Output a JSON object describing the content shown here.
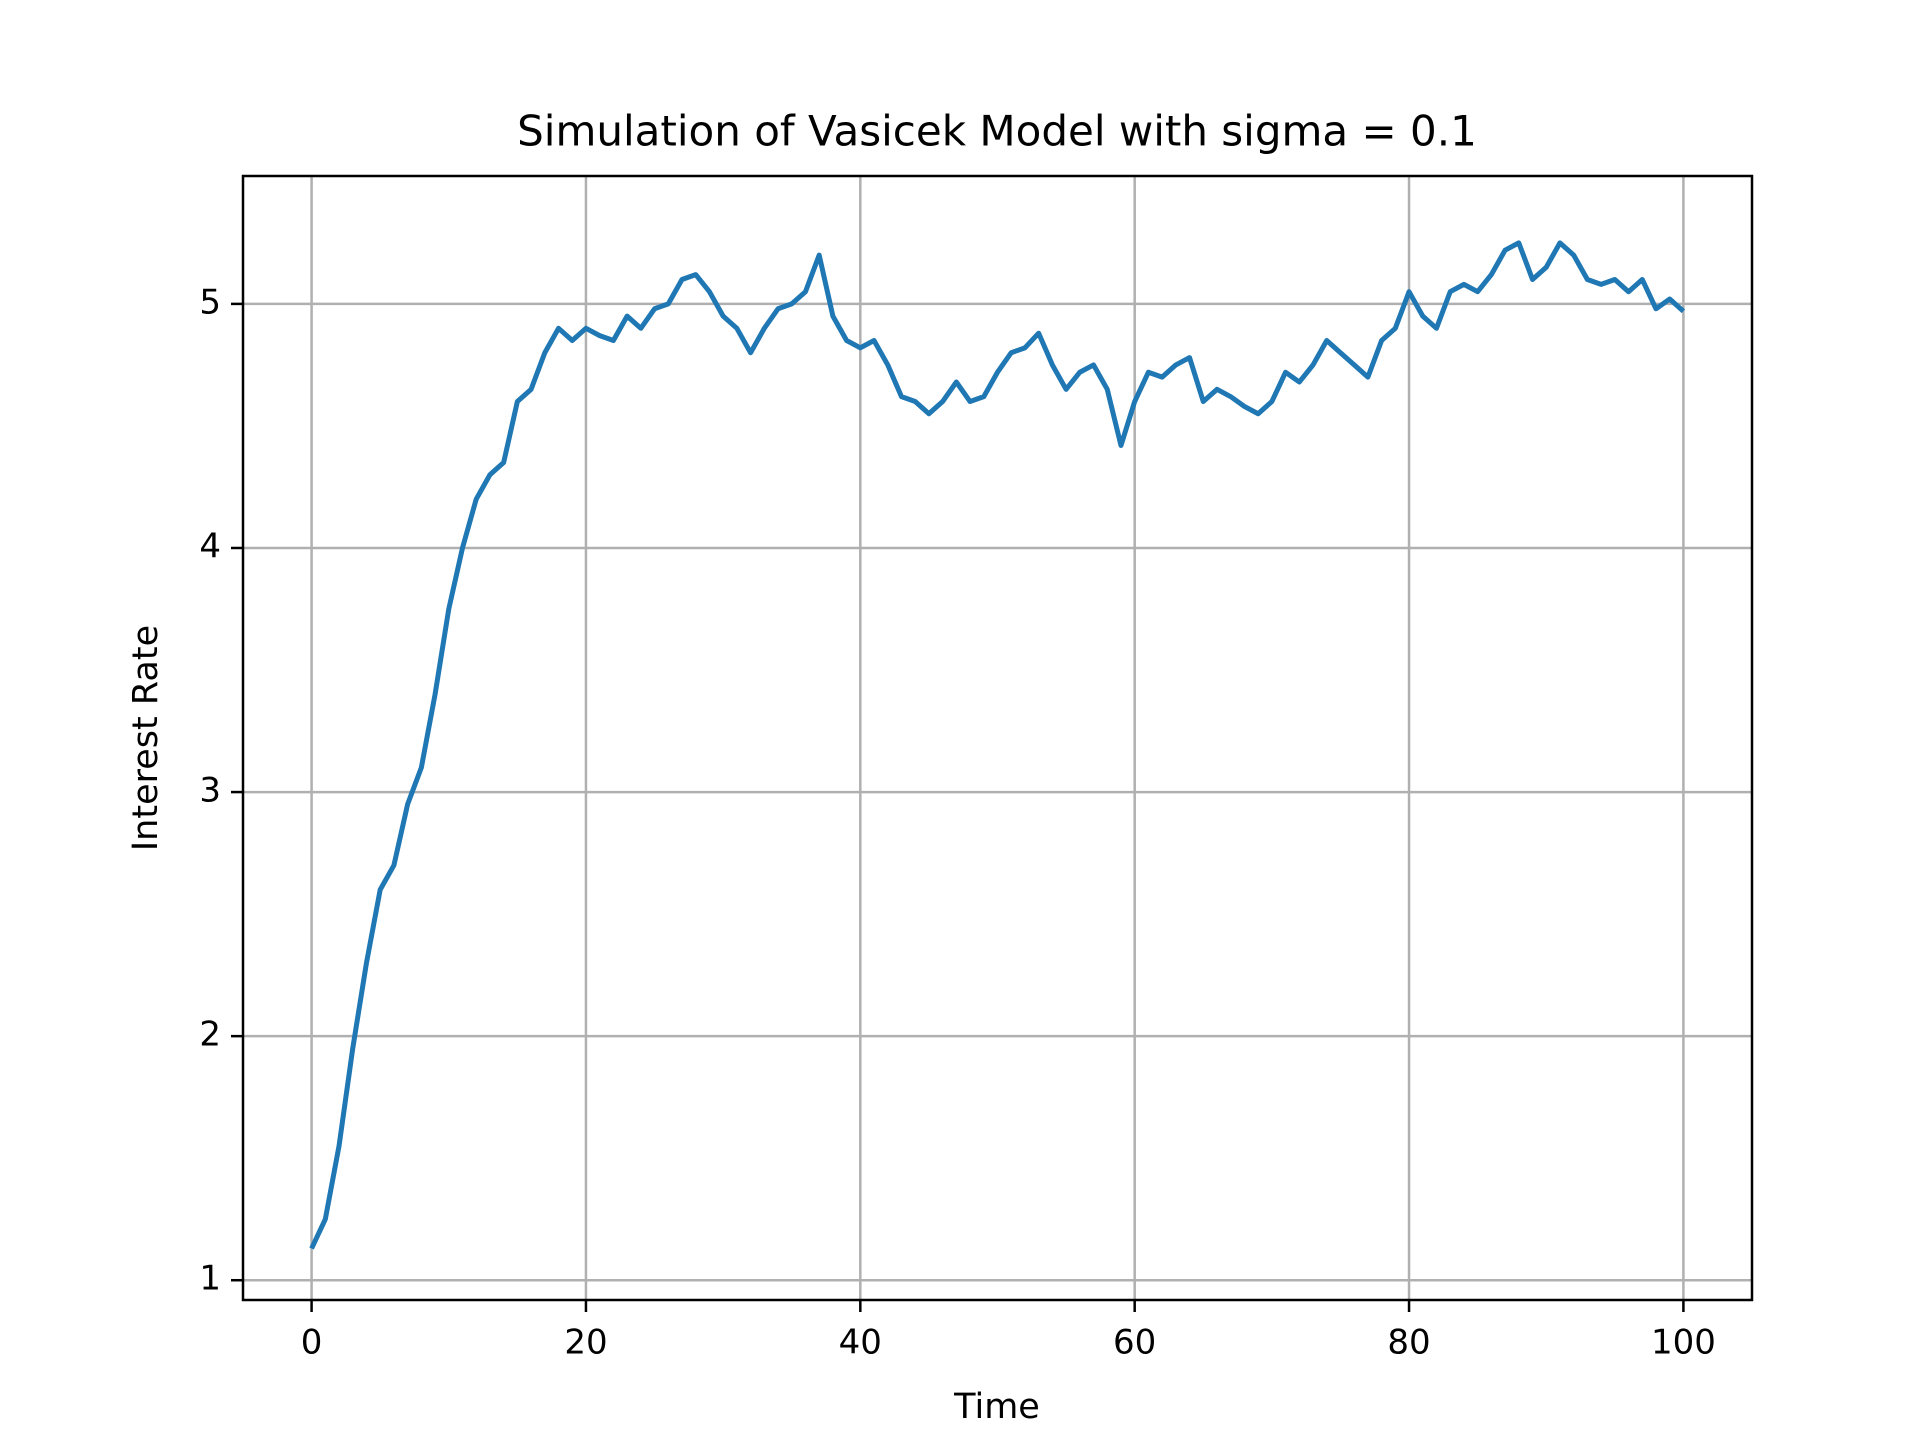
{
  "chart_data": {
    "type": "line",
    "title": "Simulation of Vasicek Model with sigma = 0.1",
    "xlabel": "Time",
    "ylabel": "Interest Rate",
    "x": [
      0,
      1,
      2,
      3,
      4,
      5,
      6,
      7,
      8,
      9,
      10,
      11,
      12,
      13,
      14,
      15,
      16,
      17,
      18,
      19,
      20,
      21,
      22,
      23,
      24,
      25,
      26,
      27,
      28,
      29,
      30,
      31,
      32,
      33,
      34,
      35,
      36,
      37,
      38,
      39,
      40,
      41,
      42,
      43,
      44,
      45,
      46,
      47,
      48,
      49,
      50,
      51,
      52,
      53,
      54,
      55,
      56,
      57,
      58,
      59,
      60,
      61,
      62,
      63,
      64,
      65,
      66,
      67,
      68,
      69,
      70,
      71,
      72,
      73,
      74,
      75,
      76,
      77,
      78,
      79,
      80,
      81,
      82,
      83,
      84,
      85,
      86,
      87,
      88,
      89,
      90,
      91,
      92,
      93,
      94,
      95,
      96,
      97,
      98,
      99,
      100
    ],
    "series": [
      {
        "name": "Interest Rate",
        "color": "#1f77b4",
        "values": [
          1.13,
          1.25,
          1.55,
          1.95,
          2.3,
          2.6,
          2.7,
          2.95,
          3.1,
          3.4,
          3.75,
          4.0,
          4.2,
          4.3,
          4.35,
          4.6,
          4.65,
          4.8,
          4.9,
          4.85,
          4.9,
          4.87,
          4.85,
          4.95,
          4.9,
          4.98,
          5.0,
          5.1,
          5.12,
          5.05,
          4.95,
          4.9,
          4.8,
          4.9,
          4.98,
          5.0,
          5.05,
          5.2,
          4.95,
          4.85,
          4.82,
          4.85,
          4.75,
          4.62,
          4.6,
          4.55,
          4.6,
          4.68,
          4.6,
          4.62,
          4.72,
          4.8,
          4.82,
          4.88,
          4.75,
          4.65,
          4.72,
          4.75,
          4.65,
          4.42,
          4.6,
          4.72,
          4.7,
          4.75,
          4.78,
          4.6,
          4.65,
          4.62,
          4.58,
          4.55,
          4.6,
          4.72,
          4.68,
          4.75,
          4.85,
          4.8,
          4.75,
          4.7,
          4.85,
          4.9,
          5.05,
          4.95,
          4.9,
          5.05,
          5.08,
          5.05,
          5.12,
          5.22,
          5.25,
          5.1,
          5.15,
          5.25,
          5.2,
          5.1,
          5.08,
          5.1,
          5.05,
          5.1,
          4.98,
          5.02,
          4.97
        ]
      }
    ],
    "xlim": [
      -5,
      105
    ],
    "ylim": [
      0.919,
      5.524
    ],
    "xticks": [
      0,
      20,
      40,
      60,
      80,
      100
    ],
    "yticks": [
      1,
      2,
      3,
      4,
      5
    ],
    "grid": true
  }
}
